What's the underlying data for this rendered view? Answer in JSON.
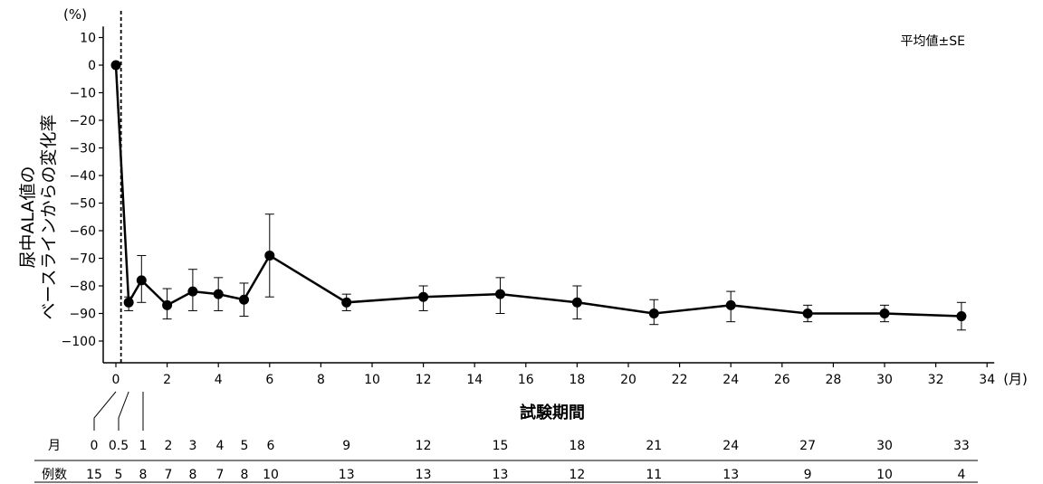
{
  "chart_data": {
    "type": "line",
    "ylabel_line1": "尿中ALA値の",
    "ylabel_line2": "ベースラインからの変化率",
    "y_unit": "(%)",
    "xlabel": "試験期間",
    "x_unit": "(月)",
    "annotation": "平均値±SE",
    "xlim": [
      -0.5,
      34
    ],
    "ylim": [
      -105,
      14
    ],
    "x_ticks": [
      0,
      2,
      4,
      6,
      8,
      10,
      12,
      14,
      16,
      18,
      20,
      22,
      24,
      26,
      28,
      30,
      32,
      34
    ],
    "y_ticks": [
      10,
      0,
      -10,
      -20,
      -30,
      -40,
      -50,
      -60,
      -70,
      -80,
      -90,
      -100
    ],
    "x_tick_labels": [
      "0",
      "2",
      "4",
      "6",
      "8",
      "10",
      "12",
      "14",
      "16",
      "18",
      "20",
      "22",
      "24",
      "26",
      "28",
      "30",
      "32",
      "34"
    ],
    "y_tick_labels": [
      "10",
      "0",
      "−10",
      "−20",
      "−30",
      "−40",
      "−50",
      "−60",
      "−70",
      "−80",
      "−90",
      "−100"
    ],
    "baseline_line_x": 0.2,
    "points": [
      {
        "x": 0,
        "y": 0,
        "err_low": 0,
        "err_high": 0
      },
      {
        "x": 0.5,
        "y": -86,
        "err_low": -89,
        "err_high": -84
      },
      {
        "x": 1,
        "y": -78,
        "err_low": -86,
        "err_high": -69
      },
      {
        "x": 2,
        "y": -87,
        "err_low": -92,
        "err_high": -81
      },
      {
        "x": 3,
        "y": -82,
        "err_low": -89,
        "err_high": -74
      },
      {
        "x": 4,
        "y": -83,
        "err_low": -89,
        "err_high": -77
      },
      {
        "x": 5,
        "y": -85,
        "err_low": -91,
        "err_high": -79
      },
      {
        "x": 6,
        "y": -69,
        "err_low": -84,
        "err_high": -54
      },
      {
        "x": 9,
        "y": -86,
        "err_low": -89,
        "err_high": -83
      },
      {
        "x": 12,
        "y": -84,
        "err_low": -89,
        "err_high": -80
      },
      {
        "x": 15,
        "y": -83,
        "err_low": -90,
        "err_high": -77
      },
      {
        "x": 18,
        "y": -86,
        "err_low": -92,
        "err_high": -80
      },
      {
        "x": 21,
        "y": -90,
        "err_low": -94,
        "err_high": -85
      },
      {
        "x": 24,
        "y": -87,
        "err_low": -93,
        "err_high": -82
      },
      {
        "x": 27,
        "y": -90,
        "err_low": -93,
        "err_high": -87
      },
      {
        "x": 30,
        "y": -90,
        "err_low": -93,
        "err_high": -87
      },
      {
        "x": 33,
        "y": -91,
        "err_low": -96,
        "err_high": -86
      }
    ],
    "table": {
      "row1_label": "月",
      "row2_label": "例数",
      "months": [
        "0",
        "0.5",
        "1",
        "2",
        "3",
        "4",
        "5",
        "6",
        "9",
        "12",
        "15",
        "18",
        "21",
        "24",
        "27",
        "30",
        "33"
      ],
      "n": [
        "15",
        "5",
        "8",
        "7",
        "8",
        "7",
        "8",
        "10",
        "13",
        "13",
        "13",
        "12",
        "11",
        "13",
        "9",
        "10",
        "4"
      ]
    }
  }
}
